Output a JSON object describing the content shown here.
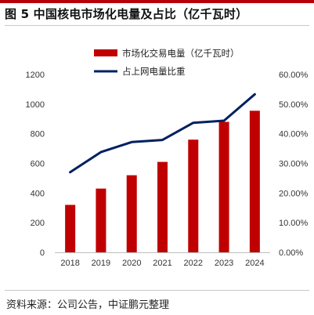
{
  "title": "图 5  中国核电市场化电量及占比（亿千瓦时）",
  "source": "资料来源：公司公告，中证鹏元整理",
  "chart_data": {
    "type": "bar",
    "categories": [
      "2018",
      "2019",
      "2020",
      "2021",
      "2022",
      "2023",
      "2024"
    ],
    "series": [
      {
        "name": "市场化交易电量（亿千瓦时）",
        "type": "bar",
        "axis": "left",
        "color": "#c00000",
        "values": [
          320,
          430,
          520,
          610,
          760,
          880,
          955
        ]
      },
      {
        "name": "占上网电量比重",
        "type": "line",
        "axis": "right",
        "color": "#002060",
        "values": [
          27.0,
          33.8,
          37.2,
          37.9,
          43.7,
          44.4,
          53.3
        ]
      }
    ],
    "y_left": {
      "ylim": [
        0,
        1200
      ],
      "ticks": [
        0,
        200,
        400,
        600,
        800,
        1000,
        1200
      ],
      "tick_labels": [
        "0",
        "200",
        "400",
        "600",
        "800",
        "1000",
        "1200"
      ]
    },
    "y_right": {
      "ylim": [
        0,
        60
      ],
      "ticks": [
        0,
        10,
        20,
        30,
        40,
        50,
        60
      ],
      "tick_labels": [
        "0.00%",
        "10.00%",
        "20.00%",
        "30.00%",
        "40.00%",
        "50.00%",
        "60.00%"
      ]
    },
    "grid": false,
    "legend_position": "top-center"
  }
}
